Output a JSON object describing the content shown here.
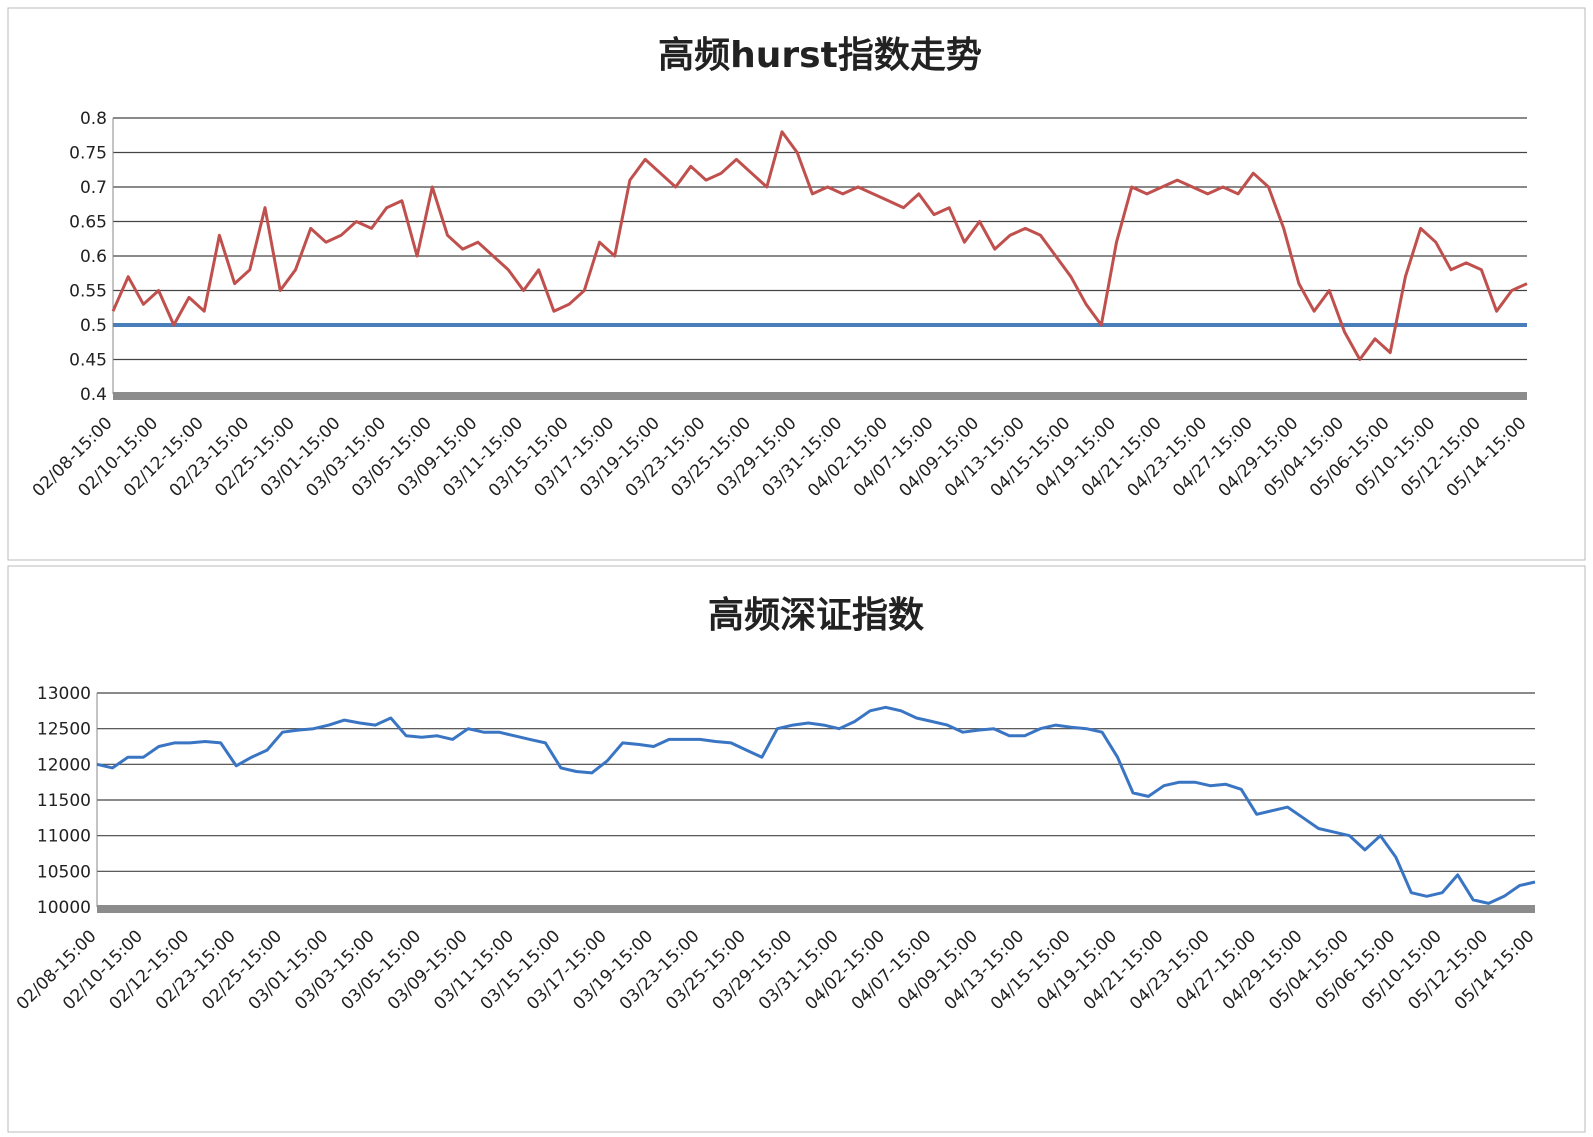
{
  "chart_data": [
    {
      "type": "line",
      "title": "高频hurst指数走势",
      "categories": [
        "02/08-15:00",
        null,
        null,
        "02/10-15:00",
        null,
        null,
        "02/12-15:00",
        null,
        null,
        "02/23-15:00",
        null,
        null,
        "02/25-15:00",
        null,
        null,
        "03/01-15:00",
        null,
        null,
        "03/03-15:00",
        null,
        null,
        "03/05-15:00",
        null,
        null,
        "03/09-15:00",
        null,
        null,
        "03/11-15:00",
        null,
        null,
        "03/15-15:00",
        null,
        null,
        "03/17-15:00",
        null,
        null,
        "03/19-15:00",
        null,
        null,
        "03/23-15:00",
        null,
        null,
        "03/25-15:00",
        null,
        null,
        "03/29-15:00",
        null,
        null,
        "03/31-15:00",
        null,
        null,
        "04/02-15:00",
        null,
        null,
        "04/07-15:00",
        null,
        null,
        "04/09-15:00",
        null,
        null,
        "04/13-15:00",
        null,
        null,
        "04/15-15:00",
        null,
        null,
        "04/19-15:00",
        null,
        null,
        "04/21-15:00",
        null,
        null,
        "04/23-15:00",
        null,
        null,
        "04/27-15:00",
        null,
        null,
        "04/29-15:00",
        null,
        null,
        "05/04-15:00",
        null,
        null,
        "05/06-15:00",
        null,
        null,
        "05/10-15:00",
        null,
        null,
        "05/12-15:00",
        null,
        null,
        "05/14-15:00"
      ],
      "series": [
        {
          "color": "#c0504d",
          "values": [
            0.52,
            0.57,
            0.53,
            0.55,
            0.5,
            0.54,
            0.52,
            0.63,
            0.56,
            0.58,
            0.67,
            0.55,
            0.58,
            0.64,
            0.62,
            0.63,
            0.65,
            0.64,
            0.67,
            0.68,
            0.6,
            0.7,
            0.63,
            0.61,
            0.62,
            0.6,
            0.58,
            0.55,
            0.58,
            0.52,
            0.53,
            0.55,
            0.62,
            0.6,
            0.71,
            0.74,
            0.72,
            0.7,
            0.73,
            0.71,
            0.72,
            0.74,
            0.72,
            0.7,
            0.78,
            0.75,
            0.69,
            0.7,
            0.69,
            0.7,
            0.69,
            0.68,
            0.67,
            0.69,
            0.66,
            0.67,
            0.62,
            0.65,
            0.61,
            0.63,
            0.64,
            0.63,
            0.6,
            0.57,
            0.53,
            0.5,
            0.62,
            0.7,
            0.69,
            0.7,
            0.71,
            0.7,
            0.69,
            0.7,
            0.69,
            0.72,
            0.7,
            0.64,
            0.56,
            0.52,
            0.55,
            0.49,
            0.45,
            0.48,
            0.46,
            0.57,
            0.64,
            0.62,
            0.58,
            0.59,
            0.58,
            0.52,
            0.55,
            0.56
          ]
        }
      ],
      "reference_line": {
        "value": 0.5,
        "color": "#4a7ebb"
      },
      "ylim": [
        0.4,
        0.8
      ],
      "yticks": [
        0.4,
        0.45,
        0.5,
        0.55,
        0.6,
        0.65,
        0.7,
        0.75,
        0.8
      ],
      "grid": true
    },
    {
      "type": "line",
      "title": "高频深证指数",
      "categories": [
        "02/08-15:00",
        null,
        null,
        "02/10-15:00",
        null,
        null,
        "02/12-15:00",
        null,
        null,
        "02/23-15:00",
        null,
        null,
        "02/25-15:00",
        null,
        null,
        "03/01-15:00",
        null,
        null,
        "03/03-15:00",
        null,
        null,
        "03/05-15:00",
        null,
        null,
        "03/09-15:00",
        null,
        null,
        "03/11-15:00",
        null,
        null,
        "03/15-15:00",
        null,
        null,
        "03/17-15:00",
        null,
        null,
        "03/19-15:00",
        null,
        null,
        "03/23-15:00",
        null,
        null,
        "03/25-15:00",
        null,
        null,
        "03/29-15:00",
        null,
        null,
        "03/31-15:00",
        null,
        null,
        "04/02-15:00",
        null,
        null,
        "04/07-15:00",
        null,
        null,
        "04/09-15:00",
        null,
        null,
        "04/13-15:00",
        null,
        null,
        "04/15-15:00",
        null,
        null,
        "04/19-15:00",
        null,
        null,
        "04/21-15:00",
        null,
        null,
        "04/23-15:00",
        null,
        null,
        "04/27-15:00",
        null,
        null,
        "04/29-15:00",
        null,
        null,
        "05/04-15:00",
        null,
        null,
        "05/06-15:00",
        null,
        null,
        "05/10-15:00",
        null,
        null,
        "05/12-15:00",
        null,
        null,
        "05/14-15:00"
      ],
      "series": [
        {
          "color": "#3a75c4",
          "values": [
            12000,
            11950,
            12100,
            12100,
            12250,
            12300,
            12300,
            12320,
            12300,
            11980,
            12100,
            12200,
            12450,
            12480,
            12500,
            12550,
            12620,
            12580,
            12550,
            12650,
            12400,
            12380,
            12400,
            12350,
            12500,
            12450,
            12450,
            12400,
            12350,
            12300,
            11950,
            11900,
            11880,
            12050,
            12300,
            12280,
            12250,
            12350,
            12350,
            12350,
            12320,
            12300,
            12200,
            12100,
            12500,
            12550,
            12580,
            12550,
            12500,
            12600,
            12750,
            12800,
            12750,
            12650,
            12600,
            12550,
            12450,
            12480,
            12500,
            12400,
            12400,
            12500,
            12550,
            12520,
            12500,
            12450,
            12100,
            11600,
            11550,
            11700,
            11750,
            11750,
            11700,
            11720,
            11650,
            11300,
            11350,
            11400,
            11250,
            11100,
            11050,
            11000,
            10800,
            11000,
            10700,
            10200,
            10150,
            10200,
            10450,
            10100,
            10050,
            10150,
            10300,
            10350
          ]
        }
      ],
      "ylim": [
        10000,
        13000
      ],
      "yticks": [
        10000,
        10500,
        11000,
        11500,
        12000,
        12500,
        13000
      ],
      "grid": true
    }
  ]
}
